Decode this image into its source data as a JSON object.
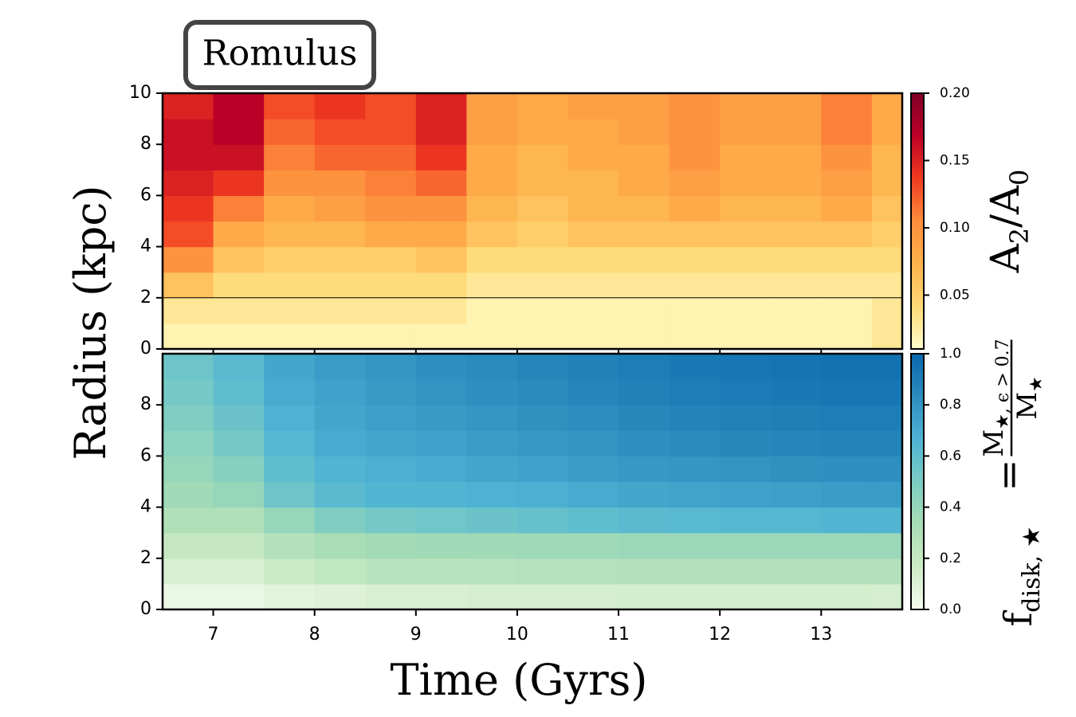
{
  "chart_data": [
    {
      "type": "heatmap",
      "title": "Romulus",
      "ylabel": "Radius (kpc)",
      "xlim": [
        6.5,
        13.8
      ],
      "ylim": [
        0,
        10
      ],
      "xticks": [
        7,
        8,
        9,
        10,
        11,
        12,
        13
      ],
      "show_xticklabels": false,
      "yticks": [
        0,
        2,
        4,
        6,
        8,
        10
      ],
      "hline": 2,
      "x_edges": [
        6.5,
        7,
        7.5,
        8,
        8.5,
        9,
        9.5,
        10,
        10.5,
        11,
        11.5,
        12,
        12.5,
        13,
        13.5,
        13.8
      ],
      "y_edges": [
        0,
        1,
        2,
        3,
        4,
        5,
        6,
        7,
        8,
        9,
        10
      ],
      "z": [
        [
          0.02,
          0.02,
          0.02,
          0.02,
          0.02,
          0.02,
          0.02,
          0.02,
          0.02,
          0.02,
          0.02,
          0.02,
          0.02,
          0.02,
          0.03
        ],
        [
          0.03,
          0.03,
          0.03,
          0.03,
          0.03,
          0.03,
          0.02,
          0.02,
          0.02,
          0.02,
          0.02,
          0.02,
          0.02,
          0.02,
          0.03
        ],
        [
          0.06,
          0.04,
          0.04,
          0.04,
          0.04,
          0.04,
          0.03,
          0.03,
          0.03,
          0.03,
          0.03,
          0.03,
          0.03,
          0.03,
          0.03
        ],
        [
          0.1,
          0.06,
          0.05,
          0.05,
          0.05,
          0.06,
          0.04,
          0.04,
          0.04,
          0.04,
          0.04,
          0.04,
          0.04,
          0.04,
          0.04
        ],
        [
          0.13,
          0.08,
          0.07,
          0.07,
          0.08,
          0.08,
          0.06,
          0.05,
          0.06,
          0.06,
          0.06,
          0.06,
          0.06,
          0.06,
          0.05
        ],
        [
          0.14,
          0.11,
          0.08,
          0.09,
          0.1,
          0.1,
          0.07,
          0.06,
          0.07,
          0.07,
          0.08,
          0.07,
          0.07,
          0.08,
          0.06
        ],
        [
          0.15,
          0.14,
          0.1,
          0.1,
          0.11,
          0.12,
          0.08,
          0.07,
          0.07,
          0.08,
          0.09,
          0.08,
          0.08,
          0.09,
          0.07
        ],
        [
          0.16,
          0.16,
          0.11,
          0.12,
          0.12,
          0.14,
          0.08,
          0.07,
          0.08,
          0.08,
          0.1,
          0.08,
          0.08,
          0.1,
          0.07
        ],
        [
          0.16,
          0.17,
          0.12,
          0.13,
          0.13,
          0.15,
          0.09,
          0.08,
          0.08,
          0.09,
          0.1,
          0.09,
          0.09,
          0.11,
          0.08
        ],
        [
          0.15,
          0.17,
          0.13,
          0.14,
          0.13,
          0.15,
          0.09,
          0.08,
          0.09,
          0.09,
          0.1,
          0.09,
          0.09,
          0.11,
          0.08
        ]
      ],
      "colormap": [
        "#ffffcc",
        "#fed976",
        "#feb24c",
        "#fd8d3c",
        "#f03b20",
        "#bd0026",
        "#800026"
      ],
      "clim": [
        0.01,
        0.2
      ],
      "cticks": [
        0.05,
        {
          "value": 0.1,
          "label": "0.10"
        },
        0.15,
        {
          "value": 0.2,
          "label": "0.20"
        }
      ],
      "colorbar_label": [
        {
          "text": "A"
        },
        {
          "text": "2",
          "sub": true
        },
        {
          "text": "/A"
        },
        {
          "text": "0",
          "sub": true
        }
      ]
    },
    {
      "type": "heatmap",
      "xlabel": "Time (Gyrs)",
      "xlim": [
        6.5,
        13.8
      ],
      "ylim": [
        0,
        10
      ],
      "xticks": [
        7,
        8,
        9,
        10,
        11,
        12,
        13
      ],
      "show_xticklabels": true,
      "yticks": [
        0,
        2,
        4,
        6,
        8
      ],
      "x_edges": [
        6.5,
        7,
        7.5,
        8,
        8.5,
        9,
        9.5,
        10,
        10.5,
        11,
        11.5,
        12,
        12.5,
        13,
        13.5,
        13.8
      ],
      "y_edges": [
        0,
        1,
        2,
        3,
        4,
        5,
        6,
        7,
        8,
        9,
        10
      ],
      "z": [
        [
          0.05,
          0.05,
          0.08,
          0.1,
          0.12,
          0.12,
          0.13,
          0.13,
          0.13,
          0.14,
          0.14,
          0.14,
          0.14,
          0.14,
          0.13
        ],
        [
          0.12,
          0.12,
          0.18,
          0.22,
          0.25,
          0.25,
          0.26,
          0.27,
          0.27,
          0.28,
          0.28,
          0.28,
          0.28,
          0.28,
          0.28
        ],
        [
          0.2,
          0.2,
          0.28,
          0.33,
          0.35,
          0.36,
          0.36,
          0.37,
          0.37,
          0.38,
          0.38,
          0.38,
          0.38,
          0.38,
          0.38
        ],
        [
          0.3,
          0.3,
          0.4,
          0.48,
          0.52,
          0.54,
          0.56,
          0.58,
          0.6,
          0.62,
          0.63,
          0.64,
          0.64,
          0.65,
          0.65
        ],
        [
          0.36,
          0.4,
          0.55,
          0.62,
          0.65,
          0.66,
          0.67,
          0.68,
          0.7,
          0.72,
          0.73,
          0.74,
          0.75,
          0.76,
          0.76
        ],
        [
          0.4,
          0.46,
          0.6,
          0.66,
          0.68,
          0.7,
          0.72,
          0.74,
          0.76,
          0.78,
          0.79,
          0.8,
          0.81,
          0.82,
          0.82
        ],
        [
          0.44,
          0.52,
          0.64,
          0.7,
          0.72,
          0.74,
          0.76,
          0.78,
          0.8,
          0.82,
          0.84,
          0.85,
          0.86,
          0.87,
          0.87
        ],
        [
          0.48,
          0.56,
          0.67,
          0.72,
          0.75,
          0.77,
          0.79,
          0.81,
          0.83,
          0.85,
          0.87,
          0.88,
          0.89,
          0.9,
          0.9
        ],
        [
          0.52,
          0.6,
          0.7,
          0.74,
          0.77,
          0.8,
          0.82,
          0.84,
          0.86,
          0.88,
          0.9,
          0.91,
          0.92,
          0.93,
          0.93
        ],
        [
          0.55,
          0.62,
          0.72,
          0.76,
          0.79,
          0.82,
          0.84,
          0.86,
          0.88,
          0.9,
          0.92,
          0.93,
          0.94,
          0.95,
          0.95
        ]
      ],
      "colormap": [
        "#f7fcf0",
        "#ccebc5",
        "#a8ddb5",
        "#7bccc4",
        "#4eb3d3",
        "#2b8cbe",
        "#0868ac"
      ],
      "clim": [
        0,
        1
      ],
      "cticks": [
        {
          "value": 0,
          "label": "0.0"
        },
        0.2,
        0.4,
        0.6,
        0.8,
        {
          "value": 1,
          "label": "1.0"
        }
      ],
      "colorbar_label": {
        "f": "f",
        "f_sub": "disk, ★",
        "eq": "=",
        "num": "M",
        "num_sub": "★, ϵ > 0.7",
        "den": "M",
        "den_sub": "★"
      }
    }
  ]
}
